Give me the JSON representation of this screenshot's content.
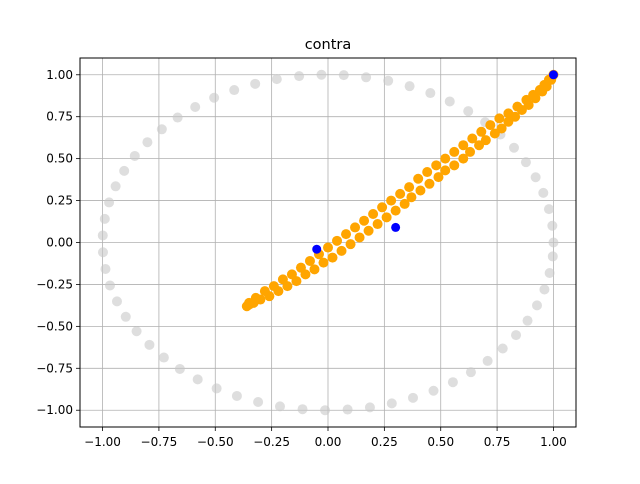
{
  "chart_data": {
    "type": "scatter",
    "title": "contra",
    "xlabel": "",
    "ylabel": "",
    "xlim": [
      -1.1,
      1.1
    ],
    "ylim": [
      -1.1,
      1.1
    ],
    "xticks": [
      -1.0,
      -0.75,
      -0.5,
      -0.25,
      0.0,
      0.25,
      0.5,
      0.75,
      1.0
    ],
    "yticks": [
      -1.0,
      -0.75,
      -0.5,
      -0.25,
      0.0,
      0.25,
      0.5,
      0.75,
      1.0
    ],
    "xtick_labels": [
      "−1.00",
      "−0.75",
      "−0.50",
      "−0.25",
      "0.00",
      "0.25",
      "0.50",
      "0.75",
      "1.00"
    ],
    "ytick_labels": [
      "−1.00",
      "−0.75",
      "−0.50",
      "−0.25",
      "0.00",
      "0.25",
      "0.50",
      "0.75",
      "1.00"
    ],
    "grid": true,
    "colors": {
      "circle": "#c8c8c8",
      "path": "#ffa500",
      "markers": "#0000ff"
    },
    "series": [
      {
        "description": "unit circle reference points",
        "role": "circle",
        "points": [
          [
            1.0,
            0.0
          ],
          [
            0.995,
            0.1
          ],
          [
            0.98,
            0.199
          ],
          [
            0.955,
            0.296
          ],
          [
            0.921,
            0.389
          ],
          [
            0.878,
            0.479
          ],
          [
            0.825,
            0.565
          ],
          [
            0.765,
            0.644
          ],
          [
            0.697,
            0.717
          ],
          [
            0.622,
            0.783
          ],
          [
            0.54,
            0.841
          ],
          [
            0.454,
            0.891
          ],
          [
            0.362,
            0.932
          ],
          [
            0.267,
            0.964
          ],
          [
            0.169,
            0.985
          ],
          [
            0.07,
            0.998
          ],
          [
            -0.029,
            1.0
          ],
          [
            -0.128,
            0.992
          ],
          [
            -0.227,
            0.974
          ],
          [
            -0.323,
            0.946
          ],
          [
            -0.416,
            0.909
          ],
          [
            -0.505,
            0.863
          ],
          [
            -0.589,
            0.808
          ],
          [
            -0.667,
            0.745
          ],
          [
            -0.737,
            0.675
          ],
          [
            -0.801,
            0.598
          ],
          [
            -0.857,
            0.516
          ],
          [
            -0.904,
            0.427
          ],
          [
            -0.942,
            0.335
          ],
          [
            -0.971,
            0.239
          ],
          [
            -0.99,
            0.141
          ],
          [
            -0.999,
            0.042
          ],
          [
            -0.998,
            -0.058
          ],
          [
            -0.987,
            -0.158
          ],
          [
            -0.967,
            -0.256
          ],
          [
            -0.936,
            -0.351
          ],
          [
            -0.897,
            -0.443
          ],
          [
            -0.849,
            -0.529
          ],
          [
            -0.792,
            -0.61
          ],
          [
            -0.728,
            -0.686
          ],
          [
            -0.657,
            -0.754
          ],
          [
            -0.578,
            -0.816
          ],
          [
            -0.494,
            -0.87
          ],
          [
            -0.404,
            -0.915
          ],
          [
            -0.31,
            -0.951
          ],
          [
            -0.213,
            -0.977
          ],
          [
            -0.113,
            -0.994
          ],
          [
            -0.013,
            -1.0
          ],
          [
            0.087,
            -0.996
          ],
          [
            0.186,
            -0.983
          ],
          [
            0.283,
            -0.959
          ],
          [
            0.377,
            -0.926
          ],
          [
            0.468,
            -0.884
          ],
          [
            0.554,
            -0.833
          ],
          [
            0.634,
            -0.773
          ],
          [
            0.708,
            -0.706
          ],
          [
            0.775,
            -0.632
          ],
          [
            0.834,
            -0.552
          ],
          [
            0.885,
            -0.466
          ],
          [
            0.927,
            -0.375
          ],
          [
            0.96,
            -0.28
          ],
          [
            0.983,
            -0.182
          ],
          [
            0.997,
            -0.083
          ]
        ]
      },
      {
        "description": "orange trajectory",
        "role": "path",
        "points": [
          [
            0.99,
            0.97
          ],
          [
            0.97,
            0.93
          ],
          [
            0.95,
            0.9
          ],
          [
            0.92,
            0.86
          ],
          [
            0.89,
            0.82
          ],
          [
            0.86,
            0.79
          ],
          [
            0.83,
            0.75
          ],
          [
            0.8,
            0.72
          ],
          [
            0.77,
            0.68
          ],
          [
            0.74,
            0.65
          ],
          [
            0.7,
            0.61
          ],
          [
            0.67,
            0.58
          ],
          [
            0.63,
            0.54
          ],
          [
            0.6,
            0.5
          ],
          [
            0.56,
            0.46
          ],
          [
            0.52,
            0.43
          ],
          [
            0.49,
            0.39
          ],
          [
            0.45,
            0.35
          ],
          [
            0.41,
            0.31
          ],
          [
            0.37,
            0.27
          ],
          [
            0.34,
            0.23
          ],
          [
            0.3,
            0.19
          ],
          [
            0.26,
            0.15
          ],
          [
            0.22,
            0.11
          ],
          [
            0.18,
            0.07
          ],
          [
            0.14,
            0.03
          ],
          [
            0.1,
            -0.01
          ],
          [
            0.06,
            -0.05
          ],
          [
            0.02,
            -0.09
          ],
          [
            -0.02,
            -0.12
          ],
          [
            -0.06,
            -0.16
          ],
          [
            -0.1,
            -0.19
          ],
          [
            -0.14,
            -0.23
          ],
          [
            -0.18,
            -0.26
          ],
          [
            -0.22,
            -0.29
          ],
          [
            -0.26,
            -0.32
          ],
          [
            -0.3,
            -0.34
          ],
          [
            -0.33,
            -0.36
          ],
          [
            -0.35,
            -0.37
          ],
          [
            -0.36,
            -0.38
          ],
          [
            -0.35,
            -0.36
          ],
          [
            -0.32,
            -0.33
          ],
          [
            -0.28,
            -0.29
          ],
          [
            -0.24,
            -0.26
          ],
          [
            -0.2,
            -0.22
          ],
          [
            -0.16,
            -0.19
          ],
          [
            -0.12,
            -0.15
          ],
          [
            -0.08,
            -0.11
          ],
          [
            -0.04,
            -0.07
          ],
          [
            0.0,
            -0.03
          ],
          [
            0.04,
            0.01
          ],
          [
            0.08,
            0.05
          ],
          [
            0.12,
            0.09
          ],
          [
            0.16,
            0.13
          ],
          [
            0.2,
            0.17
          ],
          [
            0.24,
            0.21
          ],
          [
            0.28,
            0.25
          ],
          [
            0.32,
            0.29
          ],
          [
            0.36,
            0.33
          ],
          [
            0.4,
            0.38
          ],
          [
            0.44,
            0.42
          ],
          [
            0.48,
            0.46
          ],
          [
            0.52,
            0.5
          ],
          [
            0.56,
            0.54
          ],
          [
            0.6,
            0.58
          ],
          [
            0.64,
            0.62
          ],
          [
            0.68,
            0.66
          ],
          [
            0.72,
            0.7
          ],
          [
            0.76,
            0.74
          ],
          [
            0.8,
            0.77
          ],
          [
            0.84,
            0.81
          ],
          [
            0.88,
            0.85
          ],
          [
            0.91,
            0.88
          ],
          [
            0.94,
            0.91
          ],
          [
            0.96,
            0.94
          ],
          [
            0.98,
            0.97
          ],
          [
            1.0,
            1.0
          ]
        ]
      },
      {
        "description": "blue markers",
        "role": "markers",
        "points": [
          [
            1.0,
            1.0
          ],
          [
            -0.05,
            -0.04
          ],
          [
            0.3,
            0.09
          ]
        ]
      }
    ]
  }
}
